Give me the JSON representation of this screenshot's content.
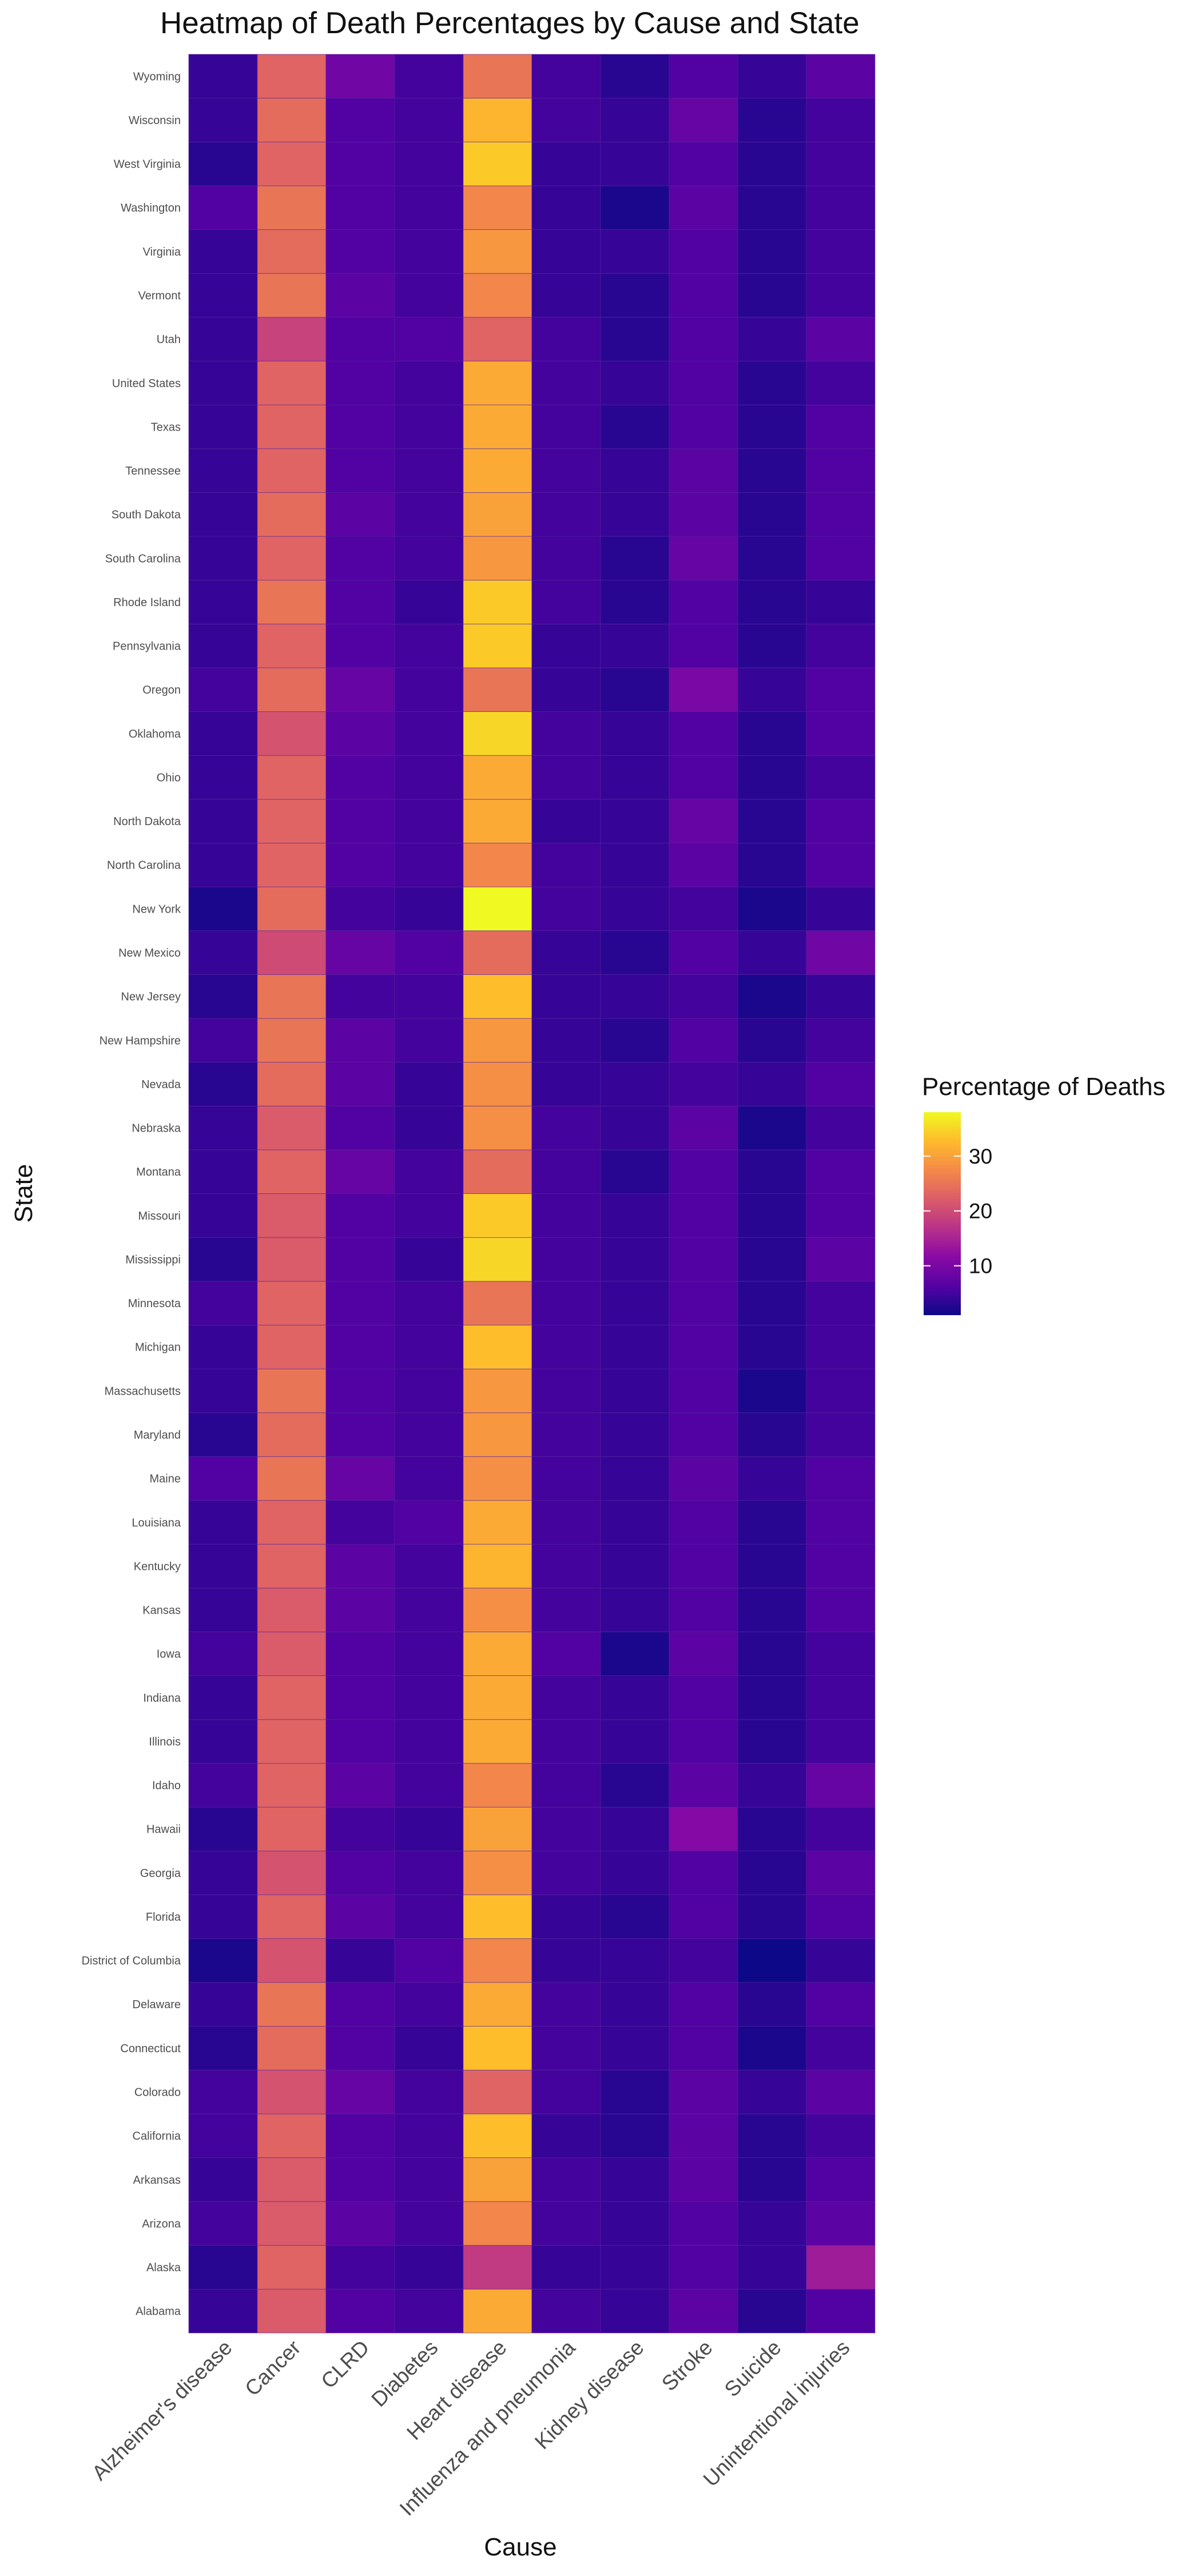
{
  "chart_data": {
    "type": "heatmap",
    "title": "Heatmap of Death Percentages by Cause and State",
    "xlabel": "Cause",
    "ylabel": "State",
    "x_categories": [
      "Alzheimer's disease",
      "Cancer",
      "CLRD",
      "Diabetes",
      "Heart disease",
      "Influenza and pneumonia",
      "Kidney disease",
      "Stroke",
      "Suicide",
      "Unintentional injuries"
    ],
    "y_categories": [
      "Alabama",
      "Alaska",
      "Arizona",
      "Arkansas",
      "California",
      "Colorado",
      "Connecticut",
      "Delaware",
      "District of Columbia",
      "Florida",
      "Georgia",
      "Hawaii",
      "Idaho",
      "Illinois",
      "Indiana",
      "Iowa",
      "Kansas",
      "Kentucky",
      "Louisiana",
      "Maine",
      "Maryland",
      "Massachusetts",
      "Michigan",
      "Minnesota",
      "Mississippi",
      "Missouri",
      "Montana",
      "Nebraska",
      "Nevada",
      "New Hampshire",
      "New Jersey",
      "New Mexico",
      "New York",
      "North Carolina",
      "North Dakota",
      "Ohio",
      "Oklahoma",
      "Oregon",
      "Pennsylvania",
      "Rhode Island",
      "South Carolina",
      "South Dakota",
      "Tennessee",
      "Texas",
      "United States",
      "Utah",
      "Vermont",
      "Virginia",
      "Washington",
      "West Virginia",
      "Wisconsin",
      "Wyoming"
    ],
    "values": [
      [
        4,
        22,
        6,
        5,
        31,
        5,
        4,
        7,
        3,
        6
      ],
      [
        3,
        23,
        5,
        4,
        18,
        4,
        4,
        6,
        4,
        14
      ],
      [
        5,
        22,
        7,
        5,
        27,
        5,
        4,
        6,
        4,
        7
      ],
      [
        4,
        22,
        6,
        5,
        30,
        5,
        4,
        7,
        3,
        6
      ],
      [
        5,
        23,
        6,
        5,
        33,
        4,
        3,
        7,
        3,
        5
      ],
      [
        5,
        21,
        8,
        5,
        23,
        5,
        3,
        7,
        4,
        7
      ],
      [
        3,
        24,
        6,
        4,
        33,
        5,
        4,
        6,
        2,
        5
      ],
      [
        4,
        25,
        6,
        5,
        31,
        5,
        4,
        6,
        3,
        6
      ],
      [
        2,
        21,
        4,
        6,
        27,
        4,
        4,
        5,
        1,
        4
      ],
      [
        4,
        23,
        7,
        5,
        33,
        4,
        3,
        6,
        3,
        6
      ],
      [
        4,
        21,
        6,
        5,
        28,
        5,
        4,
        6,
        3,
        7
      ],
      [
        3,
        23,
        5,
        4,
        30,
        5,
        4,
        11,
        3,
        5
      ],
      [
        5,
        23,
        7,
        5,
        27,
        5,
        3,
        7,
        4,
        8
      ],
      [
        4,
        23,
        6,
        5,
        31,
        5,
        4,
        6,
        3,
        5
      ],
      [
        4,
        23,
        6,
        5,
        31,
        5,
        4,
        6,
        3,
        5
      ],
      [
        5,
        22,
        6,
        5,
        31,
        6,
        2,
        7,
        3,
        5
      ],
      [
        4,
        22,
        7,
        5,
        28,
        5,
        4,
        6,
        3,
        6
      ],
      [
        4,
        23,
        7,
        5,
        32,
        5,
        4,
        6,
        3,
        6
      ],
      [
        4,
        23,
        5,
        6,
        31,
        5,
        4,
        6,
        3,
        6
      ],
      [
        6,
        25,
        8,
        5,
        28,
        5,
        4,
        7,
        4,
        6
      ],
      [
        3,
        24,
        6,
        5,
        29,
        5,
        4,
        6,
        3,
        5
      ],
      [
        4,
        25,
        6,
        5,
        29,
        5,
        4,
        6,
        2,
        5
      ],
      [
        4,
        23,
        6,
        5,
        33,
        5,
        4,
        6,
        3,
        5
      ],
      [
        5,
        23,
        6,
        5,
        25,
        5,
        4,
        6,
        3,
        5
      ],
      [
        3,
        22,
        6,
        4,
        35,
        5,
        4,
        6,
        3,
        7
      ],
      [
        4,
        22,
        6,
        5,
        34,
        5,
        4,
        6,
        3,
        6
      ],
      [
        4,
        23,
        8,
        5,
        24,
        5,
        3,
        6,
        3,
        6
      ],
      [
        4,
        22,
        6,
        4,
        28,
        5,
        4,
        7,
        2,
        5
      ],
      [
        3,
        24,
        7,
        4,
        28,
        4,
        4,
        5,
        4,
        6
      ],
      [
        5,
        25,
        7,
        5,
        29,
        4,
        3,
        6,
        3,
        5
      ],
      [
        3,
        25,
        5,
        5,
        33,
        4,
        4,
        5,
        2,
        4
      ],
      [
        4,
        20,
        8,
        6,
        24,
        4,
        3,
        6,
        4,
        9
      ],
      [
        2,
        24,
        5,
        4,
        38,
        5,
        4,
        5,
        2,
        4
      ],
      [
        4,
        23,
        6,
        5,
        27,
        5,
        4,
        7,
        3,
        6
      ],
      [
        4,
        23,
        6,
        5,
        31,
        4,
        4,
        8,
        3,
        6
      ],
      [
        4,
        23,
        6,
        5,
        31,
        5,
        4,
        6,
        3,
        5
      ],
      [
        4,
        21,
        7,
        5,
        35,
        5,
        4,
        6,
        3,
        6
      ],
      [
        5,
        24,
        8,
        5,
        25,
        4,
        3,
        10,
        4,
        6
      ],
      [
        4,
        23,
        6,
        5,
        34,
        4,
        4,
        6,
        3,
        5
      ],
      [
        4,
        25,
        6,
        4,
        34,
        5,
        3,
        6,
        3,
        4
      ],
      [
        4,
        23,
        6,
        5,
        29,
        5,
        3,
        8,
        3,
        6
      ],
      [
        4,
        24,
        7,
        5,
        30,
        5,
        4,
        7,
        3,
        6
      ],
      [
        4,
        23,
        6,
        5,
        31,
        5,
        4,
        7,
        3,
        6
      ],
      [
        4,
        23,
        6,
        5,
        31,
        5,
        3,
        6,
        3,
        6
      ],
      [
        4,
        23,
        6,
        5,
        31,
        5,
        4,
        6,
        3,
        5
      ],
      [
        4,
        19,
        6,
        6,
        23,
        5,
        3,
        6,
        4,
        7
      ],
      [
        4,
        25,
        7,
        5,
        27,
        4,
        3,
        6,
        3,
        5
      ],
      [
        4,
        24,
        6,
        5,
        29,
        4,
        4,
        6,
        3,
        5
      ],
      [
        6,
        25,
        6,
        5,
        27,
        4,
        2,
        7,
        3,
        5
      ],
      [
        3,
        23,
        6,
        5,
        34,
        4,
        4,
        6,
        3,
        5
      ],
      [
        4,
        24,
        6,
        5,
        32,
        5,
        4,
        8,
        3,
        5
      ],
      [
        4,
        23,
        9,
        5,
        25,
        5,
        3,
        6,
        4,
        7
      ]
    ],
    "colorbar": {
      "title": "Percentage of Deaths",
      "ticks": [
        10,
        20,
        30
      ],
      "range": [
        1,
        38
      ],
      "palette": "plasma"
    },
    "grid": true,
    "legend_position": "right"
  }
}
